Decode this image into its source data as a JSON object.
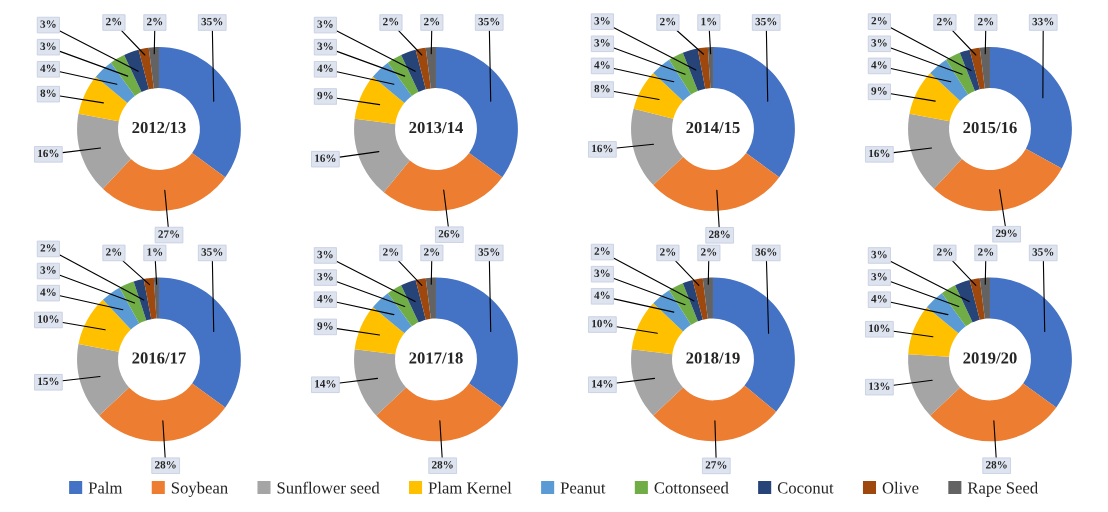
{
  "chart_data": [
    {
      "type": "donut",
      "title": "2012/13",
      "legend": "bottom",
      "categories": [
        "Palm",
        "Soybean",
        "Sunflower seed",
        "Plam Kernel",
        "Peanut",
        "Cottonseed",
        "Coconut",
        "Olive",
        "Rape Seed"
      ],
      "colors": [
        "#4472c4",
        "#ed7d31",
        "#a5a5a5",
        "#ffc000",
        "#5b9bd5",
        "#70ad47",
        "#264478",
        "#9e480e",
        "#636363"
      ],
      "values": [
        35,
        27,
        16,
        8,
        4,
        3,
        3,
        2,
        2
      ],
      "value_labels": [
        "35%",
        "27%",
        "16%",
        "8%",
        "4%",
        "3%",
        "3%",
        "2%",
        "2%"
      ]
    },
    {
      "type": "donut",
      "title": "2013/14",
      "colors": [
        "#4472c4",
        "#ed7d31",
        "#a5a5a5",
        "#ffc000",
        "#5b9bd5",
        "#70ad47",
        "#264478",
        "#9e480e",
        "#636363"
      ],
      "values": [
        35,
        26,
        16,
        9,
        4,
        3,
        3,
        2,
        2
      ],
      "value_labels": [
        "35%",
        "26%",
        "16%",
        "9%",
        "4%",
        "3%",
        "3%",
        "2%",
        "2%"
      ]
    },
    {
      "type": "donut",
      "title": "2014/15",
      "colors": [
        "#4472c4",
        "#ed7d31",
        "#a5a5a5",
        "#ffc000",
        "#5b9bd5",
        "#70ad47",
        "#264478",
        "#9e480e",
        "#636363"
      ],
      "values": [
        35,
        28,
        16,
        8,
        4,
        3,
        3,
        2,
        1
      ],
      "value_labels": [
        "35%",
        "28%",
        "16%",
        "8%",
        "4%",
        "3%",
        "3%",
        "2%",
        "1%"
      ]
    },
    {
      "type": "donut",
      "title": "2015/16",
      "colors": [
        "#4472c4",
        "#ed7d31",
        "#a5a5a5",
        "#ffc000",
        "#5b9bd5",
        "#70ad47",
        "#264478",
        "#9e480e",
        "#636363"
      ],
      "values": [
        33,
        29,
        16,
        9,
        4,
        3,
        2,
        2,
        2
      ],
      "value_labels": [
        "33%",
        "29%",
        "16%",
        "9%",
        "4%",
        "3%",
        "2%",
        "2%",
        "2%"
      ]
    },
    {
      "type": "donut",
      "title": "2016/17",
      "colors": [
        "#4472c4",
        "#ed7d31",
        "#a5a5a5",
        "#ffc000",
        "#5b9bd5",
        "#70ad47",
        "#264478",
        "#9e480e",
        "#636363"
      ],
      "values": [
        35,
        28,
        15,
        10,
        4,
        3,
        2,
        2,
        1
      ],
      "value_labels": [
        "35%",
        "28%",
        "15%",
        "10%",
        "4%",
        "3%",
        "2%",
        "2%",
        "1%"
      ]
    },
    {
      "type": "donut",
      "title": "2017/18",
      "colors": [
        "#4472c4",
        "#ed7d31",
        "#a5a5a5",
        "#ffc000",
        "#5b9bd5",
        "#70ad47",
        "#264478",
        "#9e480e",
        "#636363"
      ],
      "values": [
        35,
        28,
        14,
        9,
        4,
        3,
        3,
        2,
        2
      ],
      "value_labels": [
        "35%",
        "28%",
        "14%",
        "9%",
        "4%",
        "3%",
        "3%",
        "2%",
        "2%"
      ]
    },
    {
      "type": "donut",
      "title": "2018/19",
      "colors": [
        "#4472c4",
        "#ed7d31",
        "#a5a5a5",
        "#ffc000",
        "#5b9bd5",
        "#70ad47",
        "#264478",
        "#9e480e",
        "#636363"
      ],
      "values": [
        36,
        27,
        14,
        10,
        4,
        3,
        2,
        2,
        2
      ],
      "value_labels": [
        "36%",
        "27%",
        "14%",
        "10%",
        "4%",
        "3%",
        "2%",
        "2%",
        "2%"
      ]
    },
    {
      "type": "donut",
      "title": "2019/20",
      "colors": [
        "#4472c4",
        "#ed7d31",
        "#a5a5a5",
        "#ffc000",
        "#5b9bd5",
        "#70ad47",
        "#264478",
        "#9e480e",
        "#636363"
      ],
      "values": [
        35,
        28,
        13,
        10,
        4,
        3,
        3,
        2,
        2
      ],
      "value_labels": [
        "35%",
        "28%",
        "13%",
        "10%",
        "4%",
        "3%",
        "3%",
        "2%",
        "2%"
      ]
    }
  ]
}
